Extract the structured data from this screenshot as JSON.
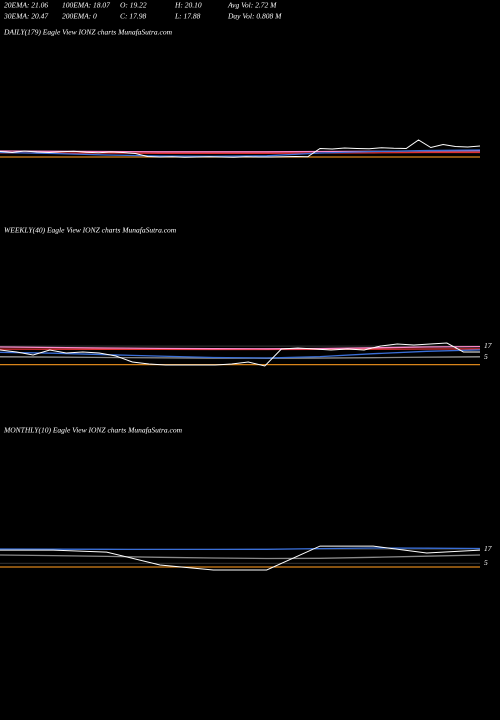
{
  "header": {
    "items": [
      "20EMA: 21.06",
      "100EMA: 18.07",
      "O: 19.22",
      "H: 20.10",
      "Avg Vol: 2.72  M",
      "30EMA: 20.47",
      "200EMA: 0",
      "C: 17.98",
      "L: 17.88",
      "Day Vol: 0.808  M"
    ]
  },
  "chart_data": [
    {
      "type": "line",
      "title": "DAILY(179) Eagle  View  IONZ charts MunafaSutra.com",
      "ylim": [
        10,
        26
      ],
      "series": [
        {
          "color": "#d8841a",
          "values": [
            15.2,
            15.2
          ]
        },
        {
          "color": "#e03030",
          "values": [
            16.9,
            16.8,
            16.8,
            16.7,
            16.7,
            16.7,
            16.8,
            16.9,
            17.0,
            17.0
          ]
        },
        {
          "color": "#ff88cc",
          "values": [
            17.6,
            17.5,
            17.4,
            17.3,
            17.3,
            17.3,
            17.4,
            17.5,
            17.6,
            17.7
          ]
        },
        {
          "color": "#3a6fd8",
          "values": [
            17.0,
            16.6,
            16.0,
            15.6,
            15.5,
            15.7,
            16.8,
            17.4,
            17.8,
            18.0
          ]
        },
        {
          "color": "#ffffff",
          "values": [
            17.4,
            17.0,
            17.6,
            17.2,
            17.0,
            17.3,
            17.5,
            17.1,
            16.9,
            17.2,
            17.0,
            16.6,
            15.4,
            15.2,
            15.3,
            15.1,
            15.2,
            15.3,
            15.2,
            15.1,
            15.3,
            15.2,
            15.2,
            15.3,
            15.4,
            15.3,
            18.6,
            18.4,
            18.8,
            18.6,
            18.5,
            18.9,
            18.7,
            18.6,
            22.0,
            19.0,
            20.2,
            19.4,
            19.2,
            19.6
          ]
        }
      ]
    },
    {
      "type": "line",
      "title": "WEEKLY(40) Eagle  View  IONZ charts MunafaSutra.com",
      "ylim": [
        -6,
        36
      ],
      "yticks": [
        17,
        5
      ],
      "series": [
        {
          "color": "#d8841a",
          "values": [
            -2.4,
            -2.4
          ]
        },
        {
          "color": "#888888",
          "values": [
            6.0,
            5.5,
            5.0,
            4.6,
            4.3,
            4.2,
            4.4,
            4.8,
            5.4,
            6.0
          ]
        },
        {
          "color": "#e03030",
          "values": [
            13.8,
            13.7,
            13.6,
            13.5,
            13.4,
            13.4,
            13.5,
            13.7,
            13.9,
            14.1
          ]
        },
        {
          "color": "#ff88cc",
          "values": [
            16.0,
            15.5,
            15.0,
            14.6,
            14.3,
            14.2,
            14.5,
            15.2,
            16.0,
            16.5
          ]
        },
        {
          "color": "#3a6fd8",
          "values": [
            10.5,
            9.5,
            8.0,
            6.5,
            5.0,
            4.5,
            6.0,
            9.0,
            11.5,
            13.0
          ]
        },
        {
          "color": "#ffffff",
          "values": [
            12.9,
            10.8,
            7.7,
            12.9,
            9.8,
            10.8,
            9.8,
            6.6,
            0.3,
            -1.8,
            -2.8,
            -2.8,
            -2.8,
            -2.8,
            -1.8,
            0.3,
            -3.9,
            14.0,
            15.0,
            14.0,
            12.9,
            14.0,
            12.9,
            17.1,
            19.2,
            18.1,
            19.2,
            20.3,
            10.8,
            10.8
          ]
        }
      ]
    },
    {
      "type": "line",
      "title": "MONTHLY(10) Eagle  View  IONZ charts MunafaSutra.com",
      "ylim": [
        -6,
        30
      ],
      "yticks": [
        17,
        5
      ],
      "series": [
        {
          "color": "#d8841a",
          "values": [
            1.7,
            1.7
          ]
        },
        {
          "color": "#888888",
          "values": [
            12.0,
            11.5,
            10.8,
            10.0,
            9.4,
            9.0,
            9.2,
            10.0,
            11.0,
            12.0
          ]
        },
        {
          "color": "#3a6fd8",
          "values": [
            17.1,
            17.0,
            16.9,
            16.8,
            16.8,
            16.9,
            17.5,
            18.0,
            17.8,
            17.6
          ]
        },
        {
          "color": "#ffffff",
          "values": [
            16.2,
            16.2,
            14.5,
            3.4,
            -0.9,
            -0.9,
            19.6,
            19.6,
            13.7,
            16.2
          ]
        }
      ]
    }
  ]
}
